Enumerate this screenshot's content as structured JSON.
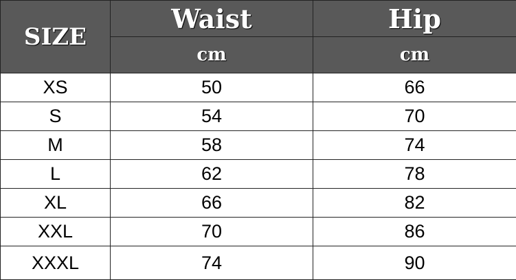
{
  "table": {
    "headers": {
      "size": "SIZE",
      "waist": "Waist",
      "hip": "Hip",
      "waist_unit": "cm",
      "hip_unit": "cm"
    },
    "colors": {
      "header_bg": "#595959",
      "header_text": "#ffffff"
    },
    "rows": [
      {
        "size": "XS",
        "waist": "50",
        "hip": "66"
      },
      {
        "size": "S",
        "waist": "54",
        "hip": "70"
      },
      {
        "size": "M",
        "waist": "58",
        "hip": "74"
      },
      {
        "size": "L",
        "waist": "62",
        "hip": "78"
      },
      {
        "size": "XL",
        "waist": "66",
        "hip": "82"
      },
      {
        "size": "XXL",
        "waist": "70",
        "hip": "86"
      },
      {
        "size": "XXXL",
        "waist": "74",
        "hip": "90"
      }
    ]
  }
}
